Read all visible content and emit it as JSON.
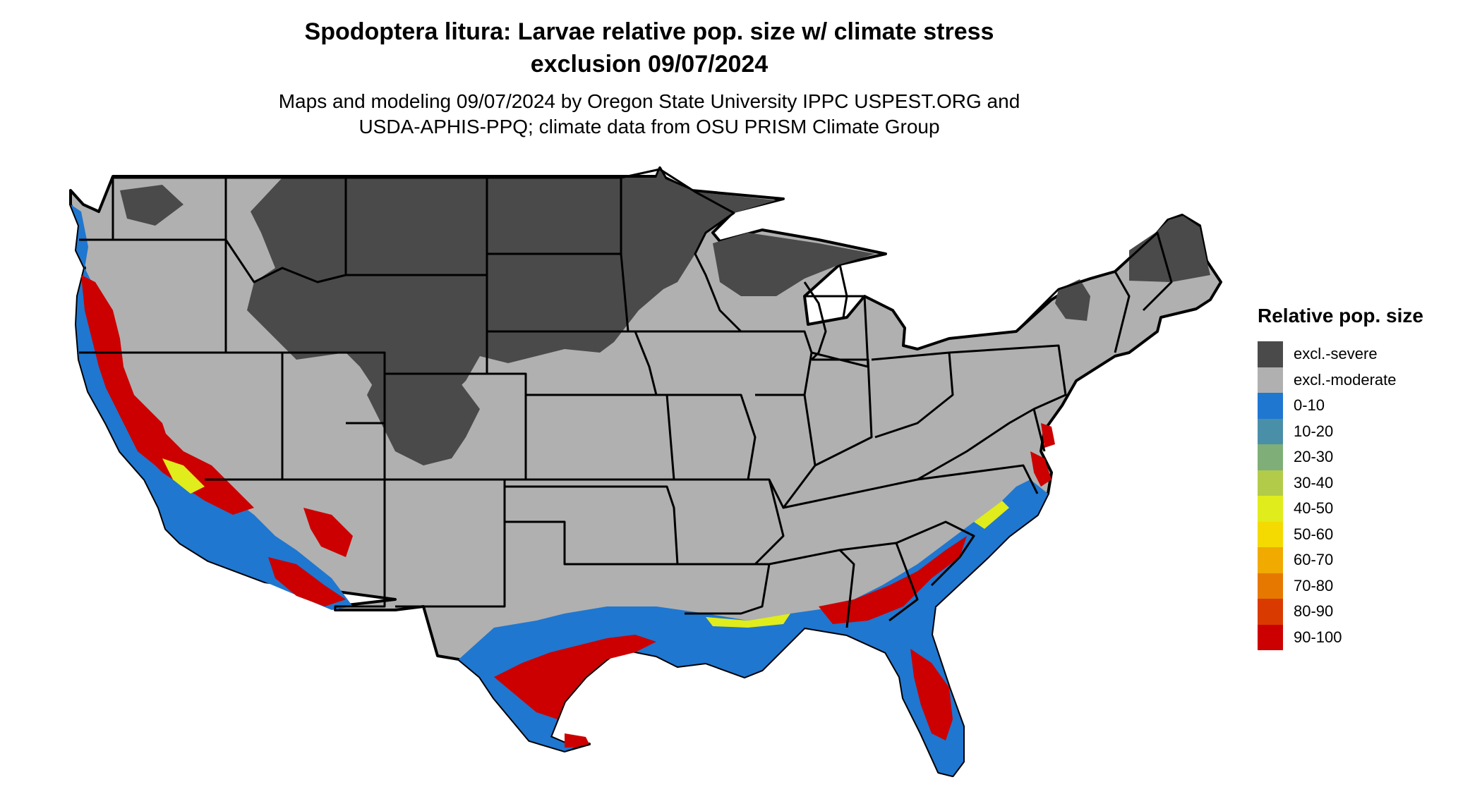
{
  "title_line1": "Spodoptera litura: Larvae relative pop. size w/ climate stress",
  "title_line2": "exclusion 09/07/2024",
  "subtitle_line1": "Maps and modeling 09/07/2024 by Oregon State University IPPC USPEST.ORG and",
  "subtitle_line2": "USDA-APHIS-PPQ; climate data from OSU PRISM Climate Group",
  "legend": {
    "title": "Relative pop. size",
    "items": [
      {
        "label": "excl.-severe",
        "color": "#4a4a4a"
      },
      {
        "label": "excl.-moderate",
        "color": "#b0b0b0"
      },
      {
        "label": "0-10",
        "color": "#1f77d0"
      },
      {
        "label": "10-20",
        "color": "#4a8fa8"
      },
      {
        "label": "20-30",
        "color": "#7fae78"
      },
      {
        "label": "30-40",
        "color": "#b2cc4a"
      },
      {
        "label": "40-50",
        "color": "#e0ec1c"
      },
      {
        "label": "50-60",
        "color": "#f4da00"
      },
      {
        "label": "60-70",
        "color": "#f0aa00"
      },
      {
        "label": "70-80",
        "color": "#e67800"
      },
      {
        "label": "80-90",
        "color": "#d93a00"
      },
      {
        "label": "90-100",
        "color": "#cc0000"
      }
    ]
  }
}
